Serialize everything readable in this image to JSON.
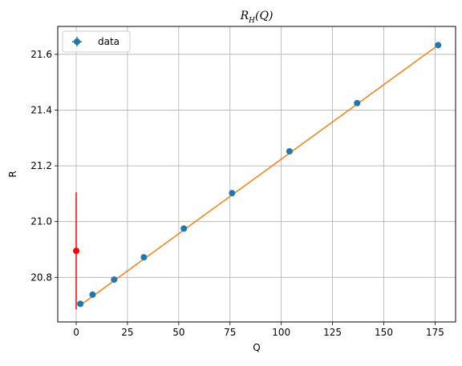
{
  "chart_data": {
    "type": "scatter",
    "title": "R_H(Q)",
    "title_main": "R",
    "title_sub": "H",
    "title_arg": "(Q)",
    "xlabel": "Q",
    "ylabel": "R",
    "xlim": [
      -9,
      185
    ],
    "ylim": [
      20.64,
      21.7
    ],
    "xticks": [
      0,
      25,
      50,
      75,
      100,
      125,
      150,
      175
    ],
    "yticks": [
      20.8,
      21.0,
      21.2,
      21.4,
      21.6
    ],
    "xtick_labels": [
      "0",
      "25",
      "50",
      "75",
      "100",
      "125",
      "150",
      "175"
    ],
    "ytick_labels": [
      "20.8",
      "21.0",
      "21.2",
      "21.4",
      "21.6"
    ],
    "grid": true,
    "legend": {
      "position": "top-left",
      "entries": [
        "data"
      ]
    },
    "series": [
      {
        "name": "data",
        "kind": "points",
        "color": "#1f77b4",
        "x": [
          2.0,
          8.0,
          18.5,
          33.0,
          52.5,
          76.0,
          104.0,
          137.0,
          176.5
        ],
        "y": [
          20.705,
          20.738,
          20.792,
          20.872,
          20.975,
          21.102,
          21.252,
          21.425,
          21.633
        ]
      },
      {
        "kind": "line",
        "color": "#ff7f0e",
        "x": [
          2.0,
          176.5
        ],
        "y": [
          20.7,
          21.633
        ]
      },
      {
        "kind": "point_errorbar",
        "color": "#ff0000",
        "x": [
          0.0
        ],
        "y": [
          20.895
        ],
        "yerr_low": [
          20.685
        ],
        "yerr_high": [
          21.105
        ]
      }
    ]
  }
}
